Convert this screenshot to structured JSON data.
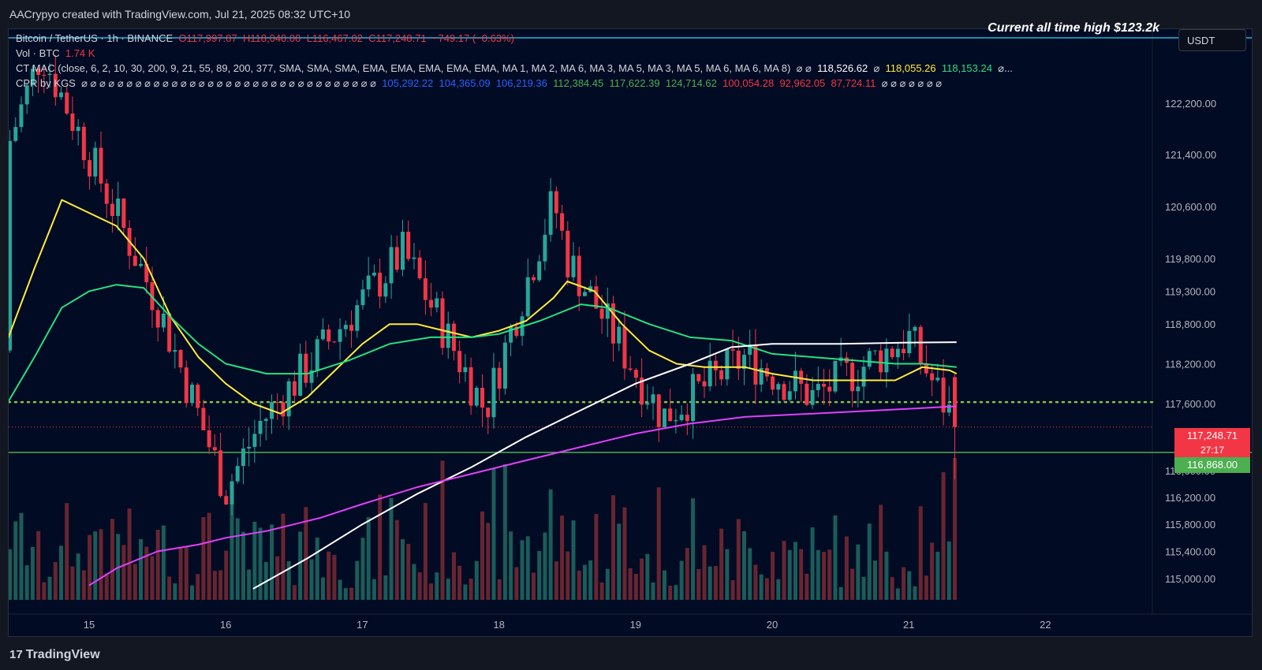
{
  "attribution": "AACrypyo created with TradingView.com, Jul 21, 2025 08:32 UTC+10",
  "brand": "TradingView",
  "currency": "USDT",
  "annotation": "Current all time high $123.2k",
  "legend": {
    "symbol_line": {
      "symbol": "Bitcoin / TetherUS · 1h · BINANCE",
      "o": "O117,997.87",
      "h": "H118,040.00",
      "l": "L116,467.02",
      "c": "C117,248.71",
      "change": "−749.17 (−0.63%)"
    },
    "vol_line": {
      "label": "Vol · BTC",
      "value": "1.74 K"
    },
    "mac_line": {
      "label": "CT MAC (close, 6, 2, 10, 30, 200, 9, 21, 55, 89, 200, 377, SMA, SMA, SMA, EMA, EMA, EMA, EMA, EMA, MA 1, MA 2, MA 6, MA 3, MA 5, MA 3, MA 5, MA 6, MA 6, MA 8)",
      "filler": "⌀ ⌀",
      "v1": "118,526.62",
      "v2": "118,055.26",
      "v3": "118,153.24",
      "tail": "⌀..."
    },
    "cpr_line": {
      "label": "CPR by KGS",
      "filler": "⌀ ⌀ ⌀ ⌀ ⌀ ⌀ ⌀ ⌀ ⌀ ⌀ ⌀ ⌀ ⌀ ⌀ ⌀ ⌀ ⌀ ⌀ ⌀ ⌀ ⌀ ⌀ ⌀ ⌀ ⌀ ⌀ ⌀ ⌀ ⌀ ⌀ ⌀ ⌀ ⌀",
      "b1": "105,292.22",
      "b2": "104,365.09",
      "b3": "106,219.36",
      "g1": "112,384.45",
      "g2": "117,622.39",
      "g3": "124,714.62",
      "r1": "100,054.28",
      "r2": "92,962.05",
      "r3": "87,724.11",
      "tail": "⌀ ⌀ ⌀ ⌀ ⌀ ⌀ ⌀"
    }
  },
  "price_tags": {
    "last_price": "117,248.71",
    "countdown": "27:17",
    "support": "116,868.00"
  },
  "colors": {
    "background": "#020b24",
    "up": "#26a69a",
    "down": "#f23645",
    "ema_fast": "#ffeb3b",
    "ema_mid": "#26e07f",
    "ma_long": "#ffffff",
    "ma_200": "#e040fb",
    "support": "#4caf50",
    "ath_line": "#22b5d8"
  },
  "chart_data": {
    "type": "candlestick",
    "symbol": "Bitcoin / TetherUS",
    "interval": "1h",
    "exchange": "BINANCE",
    "y_ticks": [
      122200,
      121400,
      120600,
      119800,
      119300,
      118800,
      118200,
      117600,
      116600,
      116200,
      115800,
      115400,
      115000
    ],
    "y_tick_labels": [
      "122,200.00",
      "121,400.00",
      "120,600.00",
      "119,800.00",
      "119,300.00",
      "118,800.00",
      "118,200.00",
      "117,600.00",
      "116,600.00",
      "116,200.00",
      "115,800.00",
      "115,400.00",
      "115,000.00"
    ],
    "x_tick_labels": [
      "15",
      "16",
      "17",
      "18",
      "19",
      "20",
      "21",
      "22"
    ],
    "x_tick_days": [
      15,
      16,
      17,
      18,
      19,
      20,
      21,
      22
    ],
    "x_range_days": [
      14.4,
      22.8
    ],
    "y_axis_scale": "log",
    "horizontal_levels": {
      "all_time_high": 123200,
      "support": 116868,
      "last_price": 117248.71,
      "cpr_dotted": 117622.39
    },
    "key_points": [
      {
        "day": 14.65,
        "price": 123000
      },
      {
        "day": 15.5,
        "price": 119100
      },
      {
        "day": 16.0,
        "price": 116300
      },
      {
        "day": 16.25,
        "price": 117300
      },
      {
        "day": 17.3,
        "price": 119900
      },
      {
        "day": 17.9,
        "price": 117500
      },
      {
        "day": 18.4,
        "price": 120700
      },
      {
        "day": 18.5,
        "price": 119800
      },
      {
        "day": 19.2,
        "price": 117400
      },
      {
        "day": 19.8,
        "price": 118300
      },
      {
        "day": 20.3,
        "price": 117700
      },
      {
        "day": 21.0,
        "price": 118600
      },
      {
        "day": 21.35,
        "price": 117248.71
      }
    ],
    "ma_series": [
      {
        "color": "ema_fast",
        "points": [
          [
            14.4,
            118550
          ],
          [
            14.6,
            119650
          ],
          [
            14.8,
            120700
          ],
          [
            15.0,
            120500
          ],
          [
            15.2,
            120300
          ],
          [
            15.4,
            119800
          ],
          [
            15.6,
            118900
          ],
          [
            15.8,
            118300
          ],
          [
            16.0,
            117900
          ],
          [
            16.2,
            117600
          ],
          [
            16.4,
            117450
          ],
          [
            16.6,
            117700
          ],
          [
            16.8,
            118100
          ],
          [
            17.0,
            118500
          ],
          [
            17.2,
            118800
          ],
          [
            17.4,
            118800
          ],
          [
            17.6,
            118700
          ],
          [
            17.8,
            118600
          ],
          [
            18.0,
            118700
          ],
          [
            18.2,
            118850
          ],
          [
            18.4,
            119200
          ],
          [
            18.5,
            119450
          ],
          [
            18.7,
            119300
          ],
          [
            18.9,
            118800
          ],
          [
            19.1,
            118400
          ],
          [
            19.3,
            118200
          ],
          [
            19.5,
            118150
          ],
          [
            19.8,
            118150
          ],
          [
            20.0,
            118050
          ],
          [
            20.3,
            117950
          ],
          [
            20.6,
            117950
          ],
          [
            20.9,
            117950
          ],
          [
            21.1,
            118150
          ],
          [
            21.3,
            118100
          ],
          [
            21.35,
            118050
          ]
        ]
      },
      {
        "color": "ema_mid",
        "points": [
          [
            14.4,
            117600
          ],
          [
            14.6,
            118300
          ],
          [
            14.8,
            119050
          ],
          [
            15.0,
            119300
          ],
          [
            15.2,
            119400
          ],
          [
            15.4,
            119350
          ],
          [
            15.6,
            118900
          ],
          [
            15.8,
            118500
          ],
          [
            16.0,
            118200
          ],
          [
            16.3,
            118050
          ],
          [
            16.6,
            118050
          ],
          [
            16.9,
            118250
          ],
          [
            17.2,
            118500
          ],
          [
            17.5,
            118600
          ],
          [
            17.8,
            118600
          ],
          [
            18.0,
            118650
          ],
          [
            18.3,
            118850
          ],
          [
            18.6,
            119100
          ],
          [
            18.8,
            119050
          ],
          [
            19.1,
            118800
          ],
          [
            19.4,
            118600
          ],
          [
            19.7,
            118550
          ],
          [
            20.0,
            118350
          ],
          [
            20.3,
            118300
          ],
          [
            20.6,
            118250
          ],
          [
            20.9,
            118200
          ],
          [
            21.1,
            118200
          ],
          [
            21.35,
            118150
          ]
        ]
      },
      {
        "color": "ma_long",
        "points": [
          [
            16.2,
            114850
          ],
          [
            16.6,
            115300
          ],
          [
            17.0,
            115800
          ],
          [
            17.4,
            116250
          ],
          [
            17.8,
            116650
          ],
          [
            18.2,
            117100
          ],
          [
            18.6,
            117500
          ],
          [
            19.0,
            117900
          ],
          [
            19.4,
            118200
          ],
          [
            19.7,
            118450
          ],
          [
            20.0,
            118500
          ],
          [
            20.5,
            118500
          ],
          [
            21.0,
            118520
          ],
          [
            21.35,
            118526
          ]
        ]
      },
      {
        "color": "ma_200",
        "points": [
          [
            15.0,
            114900
          ],
          [
            15.2,
            115150
          ],
          [
            15.5,
            115400
          ],
          [
            15.8,
            115500
          ],
          [
            16.0,
            115600
          ],
          [
            16.3,
            115700
          ],
          [
            16.7,
            115900
          ],
          [
            17.0,
            116100
          ],
          [
            17.4,
            116350
          ],
          [
            17.8,
            116550
          ],
          [
            18.2,
            116750
          ],
          [
            18.6,
            116950
          ],
          [
            19.0,
            117150
          ],
          [
            19.4,
            117300
          ],
          [
            19.8,
            117400
          ],
          [
            20.3,
            117450
          ],
          [
            20.8,
            117500
          ],
          [
            21.35,
            117560
          ]
        ]
      }
    ]
  }
}
